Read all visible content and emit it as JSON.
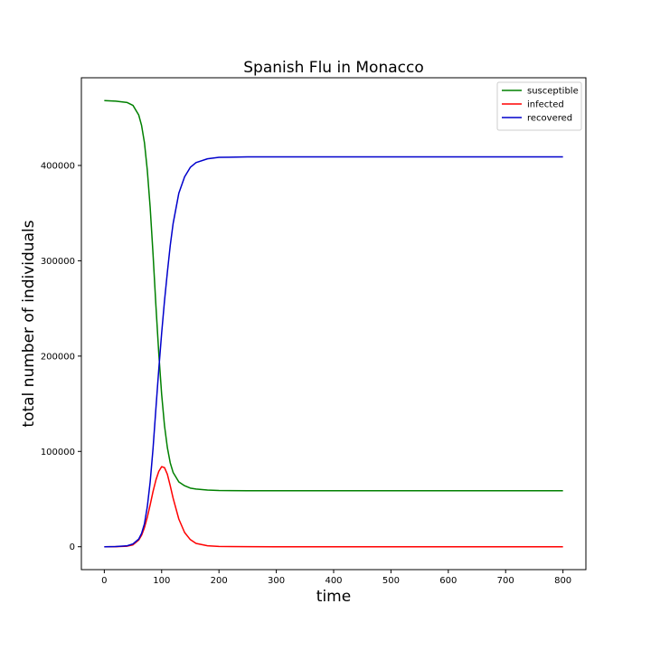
{
  "chart_data": {
    "type": "line",
    "title": "Spanish Flu in Monacco",
    "xlabel": "time",
    "ylabel": "total number of individuals",
    "xlim": [
      -40,
      840
    ],
    "ylim": [
      -24000,
      492000
    ],
    "xticks": [
      0,
      100,
      200,
      300,
      400,
      500,
      600,
      700,
      800
    ],
    "yticks": [
      0,
      100000,
      200000,
      300000,
      400000
    ],
    "grid": false,
    "legend_position": "top-right",
    "series": [
      {
        "name": "susceptible",
        "color": "#008000",
        "x": [
          0,
          20,
          40,
          50,
          60,
          65,
          70,
          75,
          80,
          85,
          90,
          95,
          100,
          105,
          110,
          115,
          120,
          130,
          140,
          150,
          160,
          180,
          200,
          250,
          300,
          400,
          500,
          600,
          700,
          800
        ],
        "y": [
          468000,
          467500,
          466000,
          463000,
          453000,
          442000,
          424000,
          395000,
          356000,
          307000,
          253000,
          203000,
          160000,
          127000,
          104000,
          88000,
          78000,
          68000,
          64000,
          61500,
          60500,
          59500,
          59000,
          58800,
          58700,
          58700,
          58700,
          58700,
          58700,
          58700
        ]
      },
      {
        "name": "infected",
        "color": "#ff0000",
        "x": [
          0,
          20,
          40,
          50,
          60,
          65,
          70,
          75,
          80,
          85,
          90,
          95,
          100,
          105,
          110,
          115,
          120,
          130,
          140,
          150,
          160,
          180,
          200,
          250,
          300,
          400,
          500,
          600,
          700,
          800
        ],
        "y": [
          0,
          100,
          600,
          2000,
          7000,
          12000,
          20000,
          31000,
          44000,
          58000,
          70000,
          79000,
          84000,
          83000,
          76000,
          64000,
          51000,
          29000,
          15000,
          7500,
          3500,
          1000,
          300,
          50,
          0,
          0,
          0,
          0,
          0,
          0
        ]
      },
      {
        "name": "recovered",
        "color": "#0000cc",
        "x": [
          0,
          20,
          40,
          50,
          60,
          65,
          70,
          75,
          80,
          85,
          90,
          95,
          100,
          105,
          110,
          115,
          120,
          130,
          140,
          150,
          160,
          180,
          200,
          250,
          300,
          400,
          500,
          600,
          700,
          800
        ],
        "y": [
          0,
          200,
          1000,
          3000,
          8000,
          14000,
          24000,
          42000,
          68000,
          103000,
          145000,
          186000,
          224000,
          258000,
          288000,
          316000,
          339000,
          371000,
          388000,
          398000,
          403000,
          407000,
          408500,
          409000,
          409000,
          409000,
          409000,
          409000,
          409000,
          409000
        ]
      }
    ]
  }
}
